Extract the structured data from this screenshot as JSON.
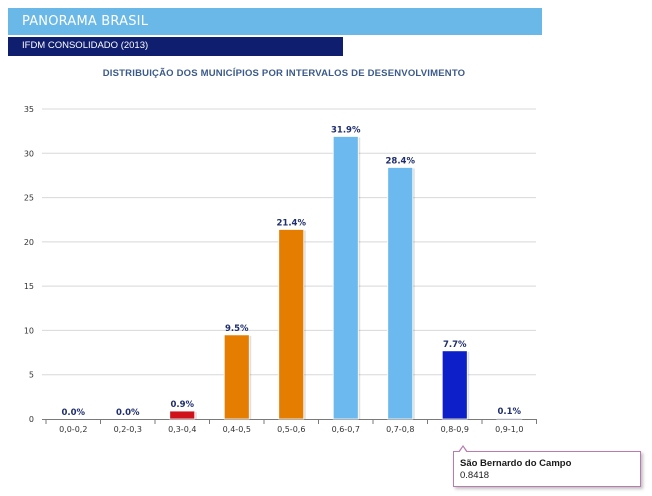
{
  "header": {
    "title": "PANORAMA BRASIL",
    "subtitle": "IFDM CONSOLIDADO (2013)"
  },
  "colors": {
    "header_bg": "#6ab8e8",
    "subheader_bg": "#0f1e6e",
    "grid": "#d8d8d8"
  },
  "tooltip": {
    "name": "São Bernardo do Campo",
    "value": "0.8418"
  },
  "chart_data": {
    "type": "bar",
    "title": "DISTRIBUIÇÃO DOS MUNICÍPIOS POR INTERVALOS DE DESENVOLVIMENTO",
    "xlabel": "",
    "ylabel": "",
    "ylim": [
      0,
      35
    ],
    "yticks": [
      0,
      5,
      10,
      15,
      20,
      25,
      30,
      35
    ],
    "grid": true,
    "categories": [
      "0,0-0,2",
      "0,2-0,3",
      "0,3-0,4",
      "0,4-0,5",
      "0,5-0,6",
      "0,6-0,7",
      "0,7-0,8",
      "0,8-0,9",
      "0,9-1,0"
    ],
    "values": [
      0.0,
      0.0,
      0.9,
      9.5,
      21.4,
      31.9,
      28.4,
      7.7,
      0.1
    ],
    "labels": [
      "0.0%",
      "0.0%",
      "0.9%",
      "9.5%",
      "21.4%",
      "31.9%",
      "28.4%",
      "7.7%",
      "0.1%"
    ],
    "bar_colors": [
      "#d0121b",
      "#d0121b",
      "#d0121b",
      "#e47d00",
      "#e47d00",
      "#6bb9ee",
      "#6bb9ee",
      "#0c1fc9",
      "#0c1fc9"
    ]
  }
}
